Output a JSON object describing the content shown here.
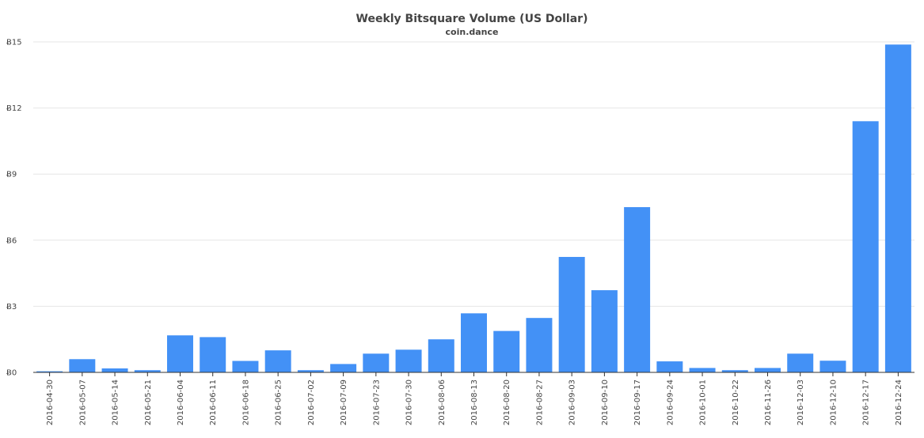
{
  "chart_data": {
    "type": "bar",
    "title": "Weekly Bitsquare Volume (US Dollar)",
    "subtitle": "coin.dance",
    "xlabel": "",
    "ylabel": "",
    "y_tick_labels": [
      "Ƀ0",
      "Ƀ3",
      "Ƀ6",
      "Ƀ9",
      "Ƀ12",
      "Ƀ15"
    ],
    "y_ticks": [
      0,
      3,
      6,
      9,
      12,
      15
    ],
    "ylim": [
      0,
      15
    ],
    "grid": true,
    "bar_color": "#4391f6",
    "categories": [
      "2016-04-30",
      "2016-05-07",
      "2016-05-14",
      "2016-05-21",
      "2016-06-04",
      "2016-06-11",
      "2016-06-18",
      "2016-06-25",
      "2016-07-02",
      "2016-07-09",
      "2016-07-23",
      "2016-07-30",
      "2016-08-06",
      "2016-08-13",
      "2016-08-20",
      "2016-08-27",
      "2016-09-03",
      "2016-09-10",
      "2016-09-17",
      "2016-09-24",
      "2016-10-01",
      "2016-10-22",
      "2016-11-26",
      "2016-12-03",
      "2016-12-10",
      "2016-12-17",
      "2016-12-24"
    ],
    "values": [
      0.05,
      0.6,
      0.18,
      0.1,
      1.68,
      1.6,
      0.52,
      1.0,
      0.1,
      0.38,
      0.85,
      1.03,
      1.5,
      2.68,
      1.88,
      2.47,
      5.24,
      3.73,
      7.5,
      0.5,
      0.2,
      0.1,
      0.2,
      0.85,
      0.53,
      11.4,
      14.88
    ]
  }
}
